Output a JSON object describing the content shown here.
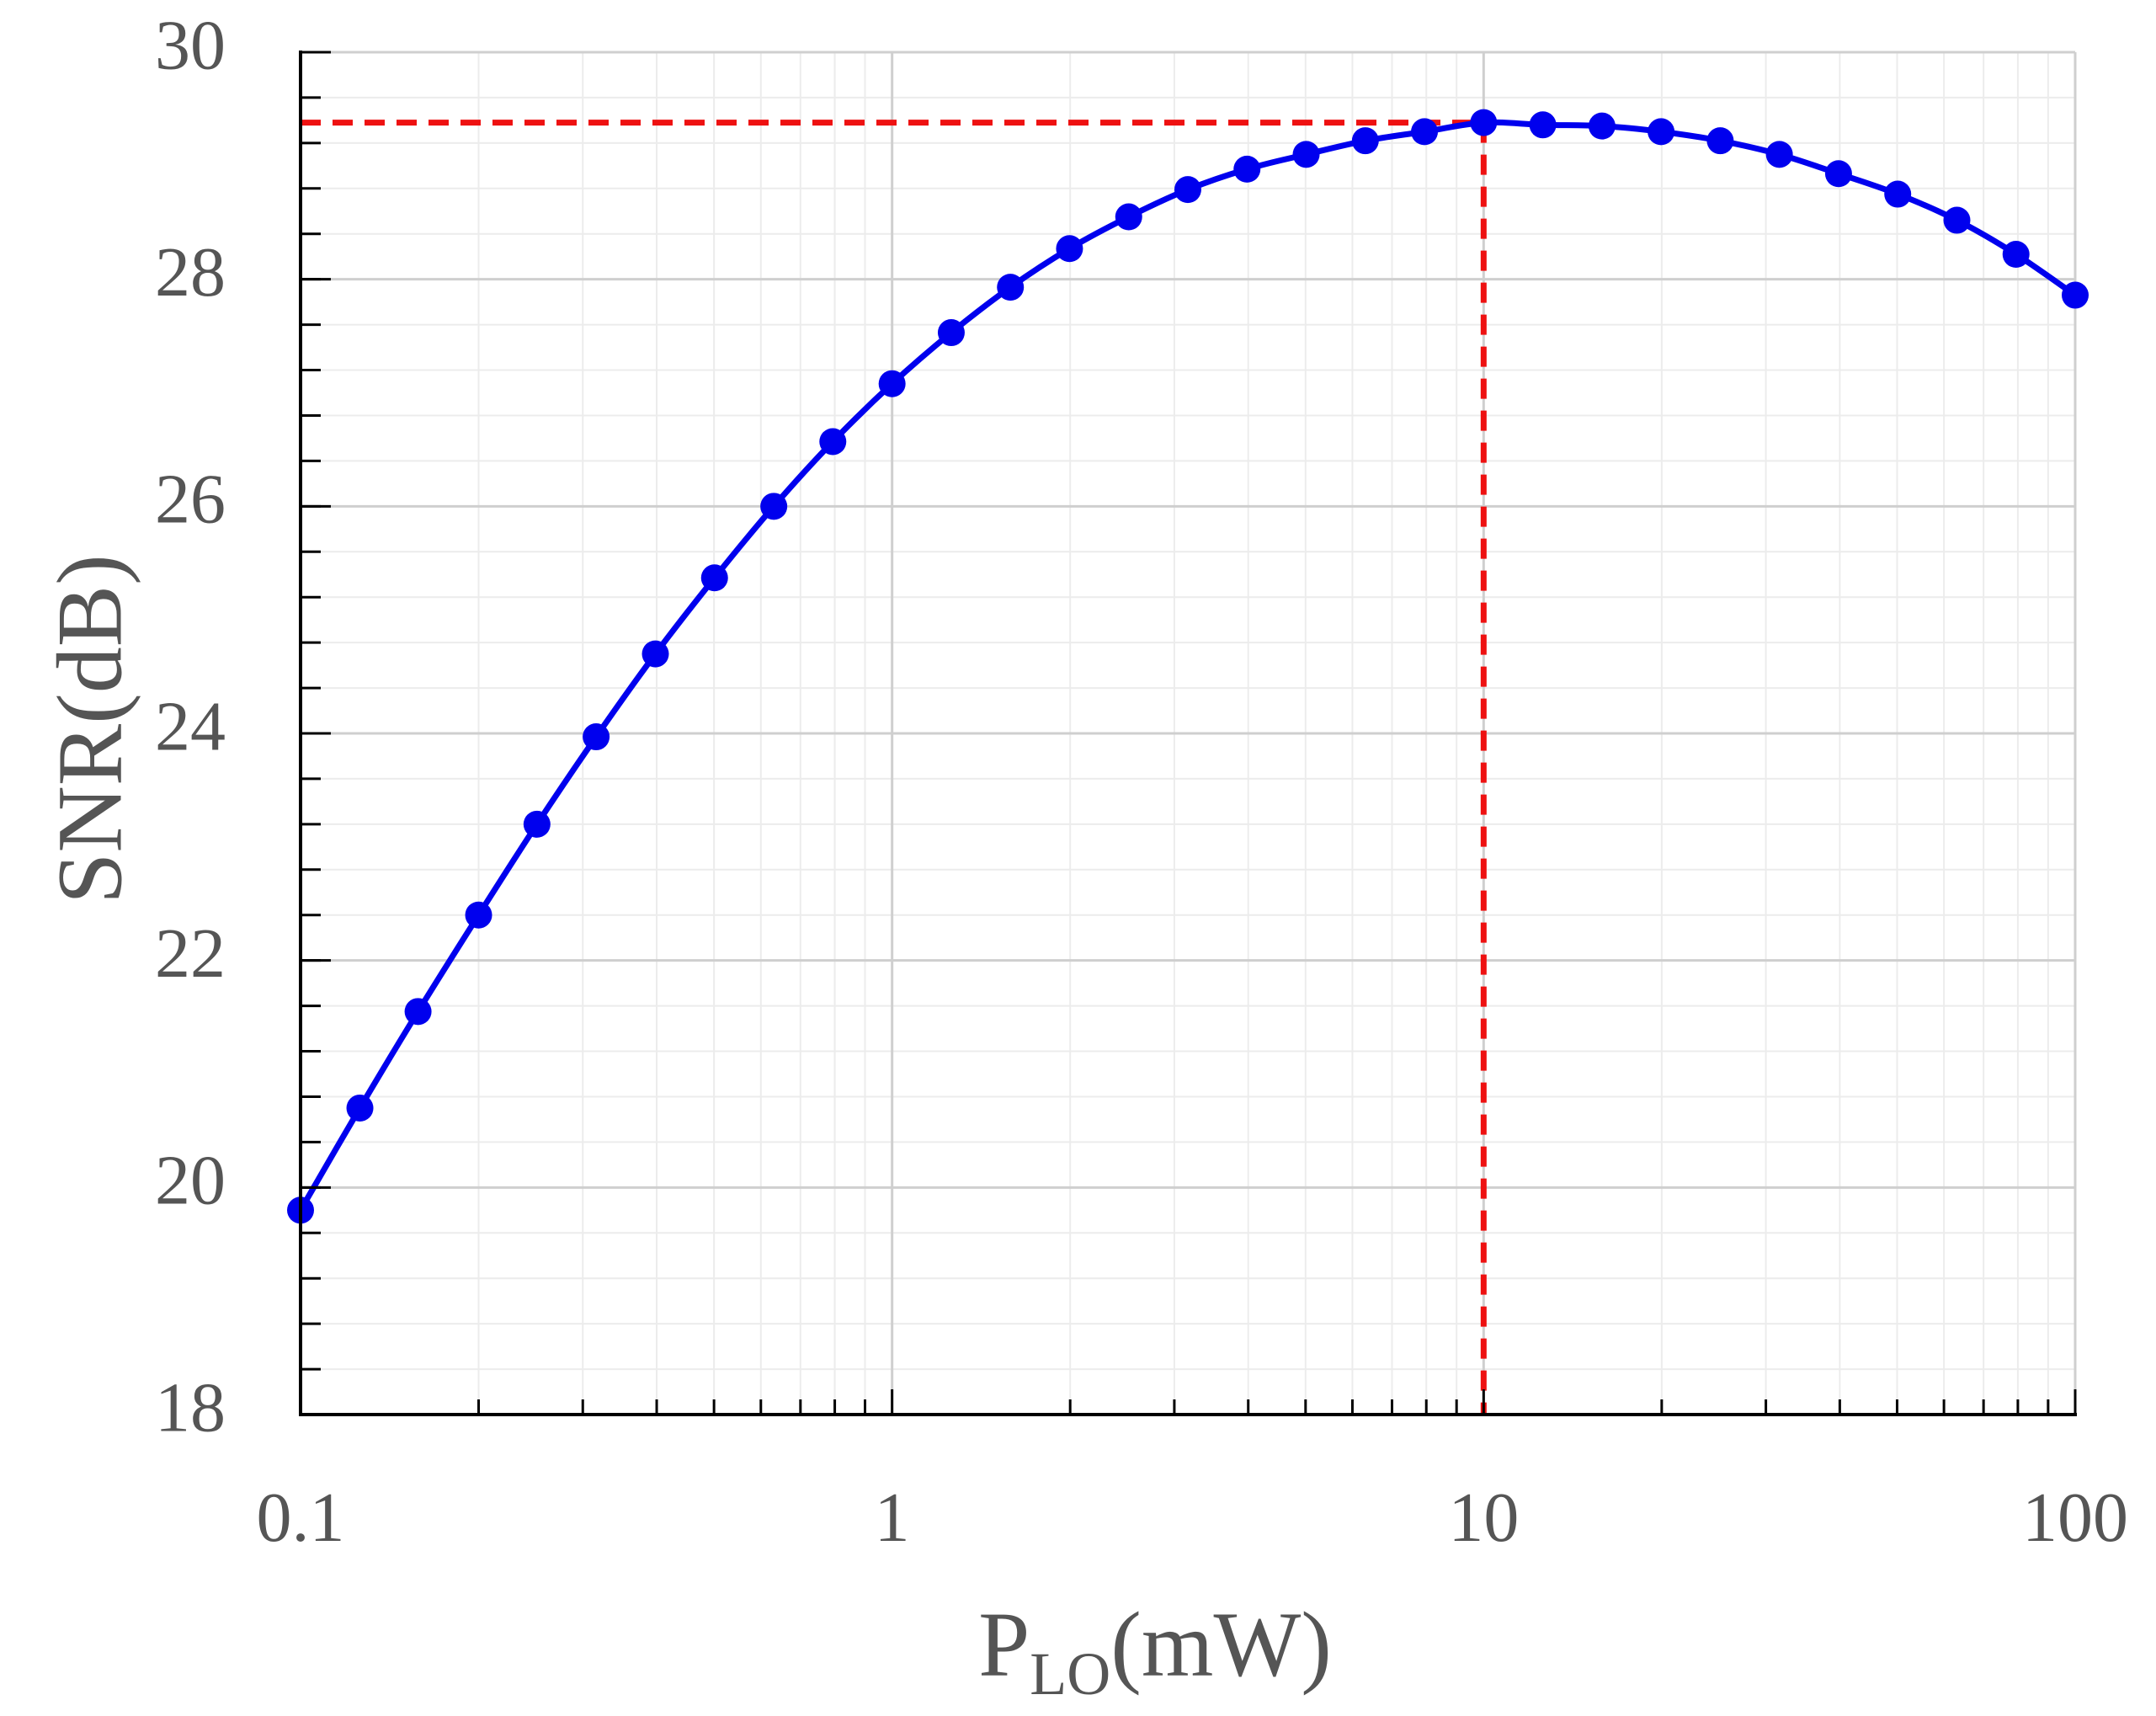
{
  "chart_data": {
    "type": "line",
    "title": "",
    "xlabel": {
      "main": "P",
      "subscript": "LO",
      "suffix": "(mW)"
    },
    "ylabel": "SNR(dB)",
    "xscale": "log",
    "xlim": [
      0.1,
      100
    ],
    "ylim": [
      18,
      30
    ],
    "x_major_ticks": [
      0.1,
      1,
      10,
      100
    ],
    "x_tick_labels": [
      "0.1",
      "1",
      "10",
      "100"
    ],
    "y_major_ticks": [
      18,
      20,
      22,
      24,
      26,
      28,
      30
    ],
    "y_tick_labels": [
      "18",
      "20",
      "22",
      "24",
      "26",
      "28",
      "30"
    ],
    "y_minor_step": 0.4,
    "grid": true,
    "series": [
      {
        "name": "SNR",
        "color": "#0000ee",
        "marker": "circle",
        "x": [
          0.1,
          0.126,
          0.158,
          0.2,
          0.251,
          0.316,
          0.398,
          0.501,
          0.631,
          0.794,
          1.0,
          1.259,
          1.585,
          1.995,
          2.512,
          3.162,
          3.981,
          5.012,
          6.31,
          7.943,
          10.0,
          12.59,
          15.85,
          19.95,
          25.12,
          31.62,
          39.81,
          50.12,
          63.1,
          79.43,
          100.0
        ],
        "values": [
          19.8,
          20.7,
          21.55,
          22.4,
          23.2,
          23.97,
          24.7,
          25.37,
          26.0,
          26.57,
          27.08,
          27.53,
          27.93,
          28.27,
          28.55,
          28.79,
          28.97,
          29.1,
          29.22,
          29.3,
          29.38,
          29.36,
          29.35,
          29.3,
          29.22,
          29.1,
          28.93,
          28.75,
          28.52,
          28.22,
          27.86
        ]
      }
    ],
    "reference_lines": {
      "color": "#ee1111",
      "style": "dashed",
      "horizontal_y": 29.38,
      "vertical_x": 10
    }
  }
}
